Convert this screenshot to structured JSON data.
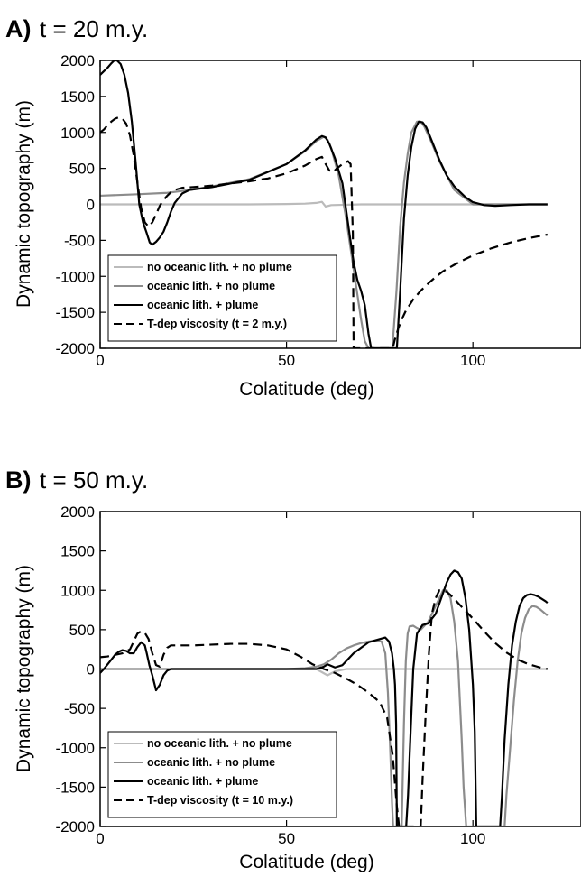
{
  "chart_data": [
    {
      "type": "line",
      "panel_letter": "A)",
      "title": "t = 20 m.y.",
      "xlabel": "Colatitude (deg)",
      "ylabel": "Dynamic topography (m)",
      "xlim": [
        0,
        120
      ],
      "ylim": [
        -2000,
        2000
      ],
      "xticks": [
        0,
        50,
        100
      ],
      "xtick_labels": [
        "0",
        "50",
        "100"
      ],
      "yticks": [
        2000,
        1500,
        1000,
        500,
        0,
        -500,
        -1000,
        -1500,
        -2000
      ],
      "ytick_labels": [
        "2000",
        "1500",
        "1000",
        "500",
        "0",
        "-500",
        "-1000",
        "-1500",
        "-2000"
      ],
      "grid": false,
      "legend_position": "bottom-left",
      "series": [
        {
          "name": "no oceanic lith. + no plume",
          "color": "#bbbbbb",
          "dash": "solid",
          "x": [
            0,
            10,
            20,
            30,
            40,
            50,
            55,
            58,
            59.5,
            60.5,
            62,
            70,
            80,
            90,
            100,
            110,
            120
          ],
          "y": [
            0,
            0,
            0,
            0,
            0,
            5,
            10,
            20,
            35,
            -30,
            -10,
            0,
            0,
            0,
            0,
            0,
            0
          ]
        },
        {
          "name": "oceanic lith. + no plume",
          "color": "#8c8c8c",
          "dash": "solid",
          "x": [
            0,
            10,
            18,
            24,
            30,
            40,
            50,
            55,
            58,
            60,
            61,
            62,
            64,
            66,
            68,
            70,
            71,
            72,
            72.5,
            78.4,
            79.5,
            80.5,
            81.5,
            82.5,
            83.5,
            85,
            86,
            87,
            89,
            91,
            95,
            100,
            110,
            120
          ],
          "y": [
            120,
            140,
            160,
            200,
            250,
            350,
            560,
            740,
            880,
            940,
            900,
            780,
            400,
            -200,
            -900,
            -1600,
            -1900,
            -2000,
            -2000,
            -2000,
            -1200,
            -300,
            300,
            700,
            1000,
            1150,
            1150,
            1080,
            850,
            600,
            200,
            0,
            0,
            0
          ]
        },
        {
          "name": "oceanic lith. + plume",
          "color": "#000000",
          "dash": "solid",
          "x": [
            0,
            1,
            2,
            3,
            3.8,
            4.5,
            5.5,
            6.5,
            7.5,
            8.5,
            9.5,
            10.5,
            11.5,
            12.5,
            13.3,
            14,
            15,
            16,
            17,
            18,
            19,
            20,
            22,
            24,
            27,
            30,
            40,
            50,
            55,
            58,
            59.5,
            60.5,
            61.5,
            63,
            65,
            67,
            68,
            69,
            70,
            71,
            72,
            72.7,
            79.6,
            80.5,
            81.5,
            82.5,
            83.5,
            84.5,
            85.5,
            86.5,
            87.5,
            89,
            91,
            93,
            95,
            98,
            100,
            103,
            106,
            110,
            115,
            120
          ],
          "y": [
            1800,
            1850,
            1900,
            1960,
            2000,
            2000,
            1950,
            1800,
            1550,
            1150,
            600,
            0,
            -250,
            -400,
            -530,
            -560,
            -520,
            -460,
            -380,
            -250,
            -100,
            20,
            150,
            200,
            220,
            240,
            340,
            560,
            750,
            900,
            950,
            930,
            840,
            640,
            290,
            -450,
            -800,
            -1050,
            -1200,
            -1400,
            -1800,
            -2000,
            -2000,
            -1200,
            -200,
            400,
            800,
            1050,
            1150,
            1140,
            1070,
            880,
            620,
            400,
            250,
            100,
            30,
            -10,
            -20,
            -10,
            0,
            0
          ]
        },
        {
          "name": "T-dep viscosity (t = 2 m.y.)",
          "color": "#000000",
          "dash": "dashed",
          "x": [
            0,
            1,
            2,
            3,
            4,
            5,
            6,
            7,
            8,
            9,
            10,
            11,
            12,
            13,
            14,
            15,
            16,
            17,
            18,
            19,
            20,
            22,
            25,
            30,
            35,
            40,
            45,
            50,
            55,
            58,
            59.5,
            60.5,
            61.5,
            62.5,
            63.5,
            65,
            66.5,
            67.2,
            67.8,
            68.0,
            78.5,
            79,
            80,
            81,
            82,
            84,
            86,
            88,
            90,
            92,
            95,
            98,
            100,
            105,
            110,
            115,
            120
          ],
          "y": [
            1000,
            1040,
            1100,
            1150,
            1190,
            1210,
            1190,
            1120,
            960,
            680,
            300,
            -50,
            -250,
            -310,
            -250,
            -140,
            -20,
            60,
            120,
            170,
            200,
            230,
            240,
            260,
            290,
            320,
            360,
            430,
            540,
            630,
            660,
            560,
            470,
            450,
            500,
            560,
            600,
            560,
            -400,
            -2000,
            -2000,
            -1890,
            -1720,
            -1590,
            -1480,
            -1320,
            -1200,
            -1100,
            -1010,
            -930,
            -840,
            -760,
            -710,
            -610,
            -530,
            -470,
            -420
          ]
        }
      ]
    },
    {
      "type": "line",
      "panel_letter": "B)",
      "title": "t = 50 m.y.",
      "xlabel": "Colatitude (deg)",
      "ylabel": "Dynamic topography (m)",
      "xlim": [
        0,
        120
      ],
      "ylim": [
        -2000,
        2000
      ],
      "xticks": [
        0,
        50,
        100
      ],
      "xtick_labels": [
        "0",
        "50",
        "100"
      ],
      "yticks": [
        2000,
        1500,
        1000,
        500,
        0,
        -500,
        -1000,
        -1500,
        -2000
      ],
      "ytick_labels": [
        "2000",
        "1500",
        "1000",
        "500",
        "0",
        "-500",
        "-1000",
        "-1500",
        "-2000"
      ],
      "grid": false,
      "legend_position": "bottom-left",
      "series": [
        {
          "name": "no oceanic lith. + no plume",
          "color": "#bbbbbb",
          "dash": "solid",
          "x": [
            0,
            10,
            20,
            30,
            40,
            50,
            58,
            59.5,
            61,
            63,
            66,
            70,
            75,
            80,
            90,
            100,
            110,
            120
          ],
          "y": [
            0,
            0,
            0,
            0,
            0,
            0,
            0,
            -40,
            -80,
            -30,
            0,
            0,
            0,
            0,
            0,
            0,
            0,
            0
          ]
        },
        {
          "name": "oceanic lith. + no plume",
          "color": "#8c8c8c",
          "dash": "solid",
          "x": [
            0,
            10,
            20,
            30,
            40,
            50,
            55,
            58,
            60,
            62,
            64,
            66,
            68,
            70,
            72,
            74,
            75.5,
            76.5,
            77.2,
            77.8,
            78.3,
            78.6,
            80.9,
            81.5,
            82,
            82.5,
            83,
            84,
            85,
            86,
            88,
            90,
            92,
            93,
            94,
            95,
            96,
            97,
            97.5,
            98.2,
            108.5,
            109,
            110,
            111,
            112,
            113,
            114,
            115,
            116,
            117,
            118,
            119,
            120
          ],
          "y": [
            0,
            0,
            0,
            0,
            0,
            0,
            10,
            30,
            60,
            120,
            200,
            260,
            300,
            330,
            350,
            360,
            350,
            200,
            -300,
            -1000,
            -1700,
            -2000,
            -2000,
            -700,
            100,
            450,
            540,
            550,
            520,
            500,
            600,
            800,
            1000,
            1000,
            900,
            600,
            100,
            -900,
            -1500,
            -2000,
            -2000,
            -1600,
            -1000,
            -400,
            100,
            450,
            650,
            760,
            800,
            790,
            760,
            720,
            680
          ]
        },
        {
          "name": "oceanic lith. + plume",
          "color": "#000000",
          "dash": "solid",
          "x": [
            0,
            1,
            2,
            3,
            4,
            5,
            6,
            7,
            8,
            9,
            10,
            11,
            12,
            12.5,
            13.2,
            14,
            15,
            16,
            17,
            18,
            19,
            20,
            25,
            30,
            40,
            50,
            55,
            58,
            60,
            61,
            62,
            63,
            65,
            68,
            72,
            75,
            76.5,
            77.5,
            78.3,
            78.8,
            79.1,
            79.4,
            79.6,
            82.1,
            82.6,
            83.2,
            84,
            85,
            86.5,
            88,
            90,
            91.5,
            93,
            94,
            95,
            96,
            97,
            98,
            99,
            100,
            100.5,
            100.9,
            107.3,
            107.8,
            108.5,
            109.5,
            110.5,
            111.5,
            112.5,
            113.5,
            114.5,
            115.5,
            116.5,
            117.5,
            118.5,
            119.5,
            120
          ],
          "y": [
            -50,
            0,
            60,
            120,
            180,
            220,
            240,
            230,
            200,
            200,
            280,
            340,
            300,
            200,
            50,
            -80,
            -270,
            -200,
            -80,
            -20,
            0,
            0,
            0,
            0,
            0,
            0,
            0,
            0,
            30,
            60,
            40,
            20,
            50,
            200,
            340,
            380,
            400,
            350,
            200,
            0,
            -200,
            -700,
            -2000,
            -2000,
            -1600,
            -900,
            0,
            450,
            560,
            580,
            700,
            900,
            1100,
            1200,
            1250,
            1230,
            1150,
            900,
            500,
            -200,
            -800,
            -2000,
            -2000,
            -1600,
            -900,
            -200,
            300,
            600,
            800,
            900,
            940,
            950,
            940,
            920,
            890,
            860,
            840
          ]
        },
        {
          "name": "T-dep viscosity (t = 10 m.y.)",
          "color": "#000000",
          "dash": "dashed",
          "x": [
            0,
            2,
            4,
            6,
            8,
            9,
            10,
            11,
            12,
            13,
            14,
            15,
            16,
            17,
            18,
            19,
            20,
            25,
            30,
            35,
            40,
            45,
            50,
            54,
            57,
            60,
            63,
            66,
            69,
            72,
            75,
            77,
            78.5,
            79.5,
            80.2,
            80.4,
            86.0,
            86.5,
            87.3,
            88.2,
            89,
            90,
            91,
            92,
            93,
            94,
            95,
            97,
            100,
            103,
            106,
            109,
            112,
            115,
            118,
            120
          ],
          "y": [
            150,
            160,
            180,
            200,
            250,
            350,
            450,
            480,
            460,
            380,
            200,
            50,
            30,
            180,
            270,
            300,
            300,
            300,
            310,
            320,
            320,
            300,
            250,
            150,
            60,
            0,
            -50,
            -120,
            -200,
            -300,
            -420,
            -620,
            -1100,
            -1700,
            -2000,
            -2000,
            -2000,
            -1400,
            -600,
            200,
            700,
            900,
            1000,
            1000,
            980,
            940,
            890,
            790,
            640,
            480,
            330,
            210,
            120,
            60,
            20,
            0
          ]
        }
      ]
    }
  ]
}
